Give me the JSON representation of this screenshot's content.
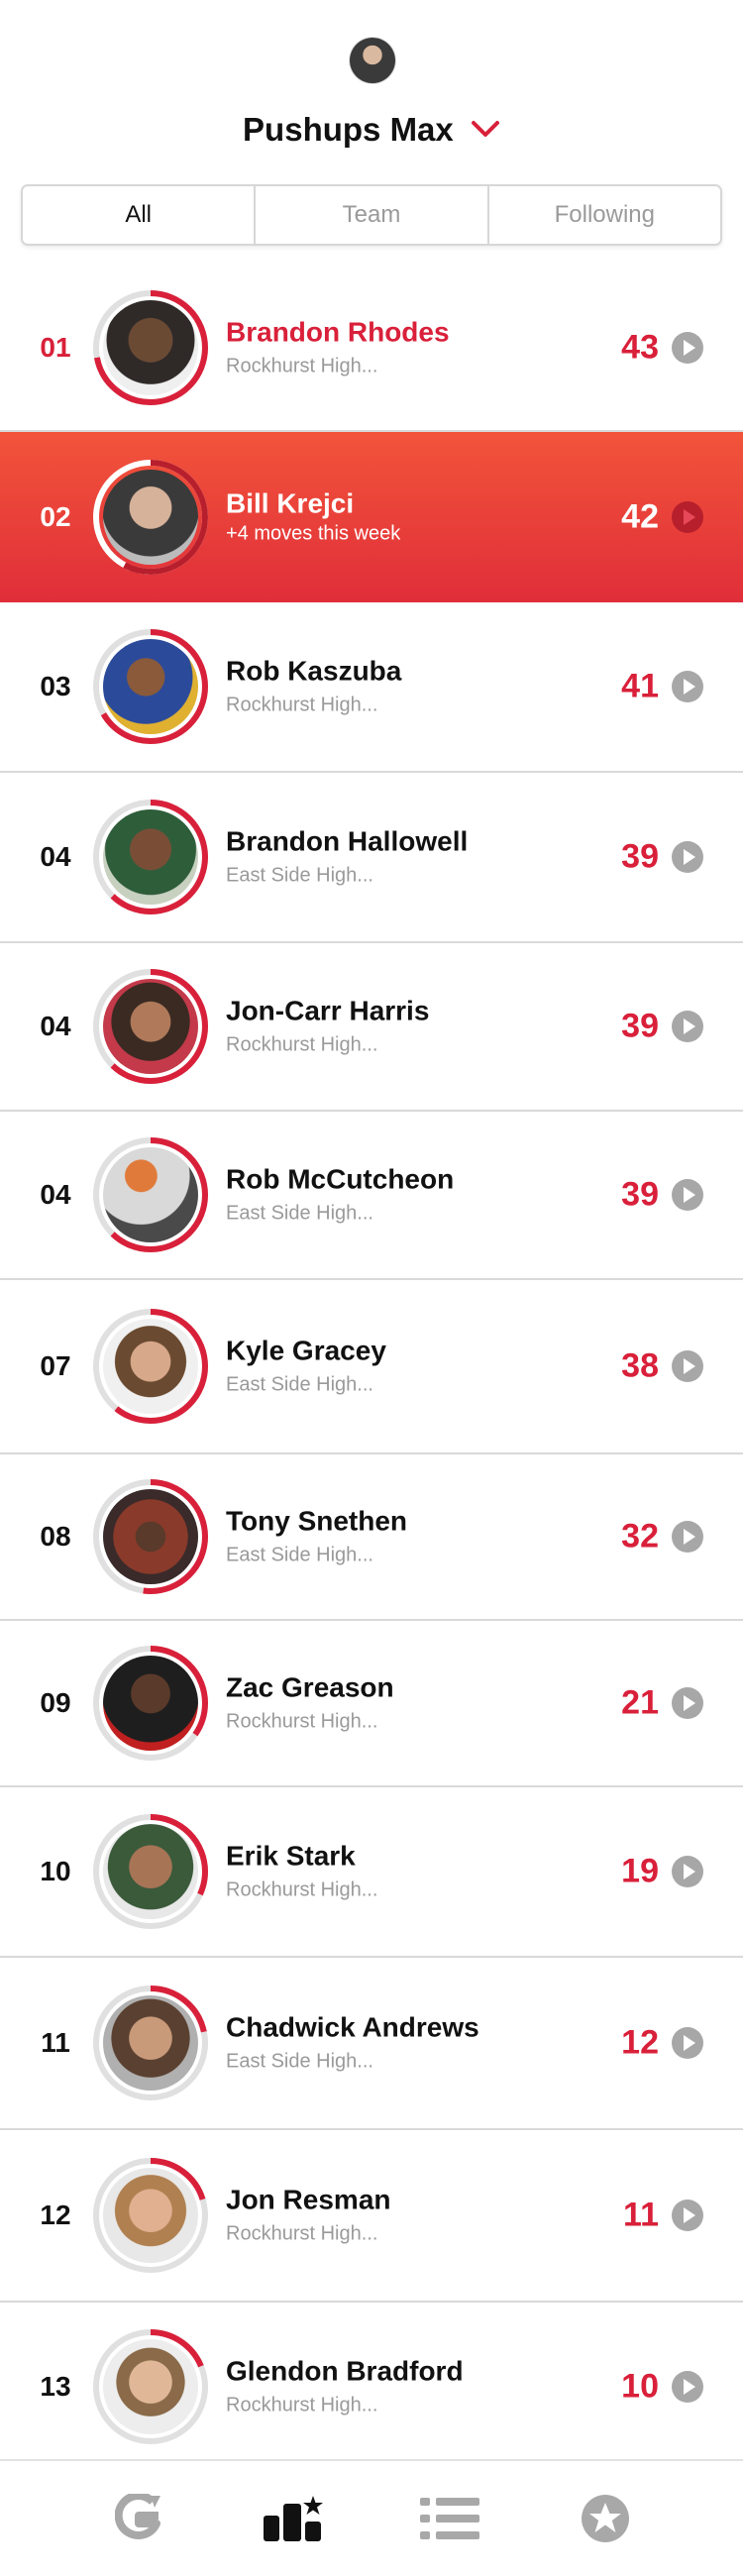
{
  "header": {
    "title": "Pushups Max",
    "tabs": [
      "All",
      "Team",
      "Following"
    ]
  },
  "rows": [
    {
      "rank": "01",
      "name": "Brandon Rhodes",
      "sub": "Rockhurst High...",
      "score": "43"
    },
    {
      "rank": "02",
      "name": "Bill Krejci",
      "sub": "+4 moves this week",
      "score": "42"
    },
    {
      "rank": "03",
      "name": "Rob Kaszuba",
      "sub": "Rockhurst High...",
      "score": "41"
    },
    {
      "rank": "04",
      "name": "Brandon Hallowell",
      "sub": "East Side High...",
      "score": "39"
    },
    {
      "rank": "04",
      "name": "Jon-Carr Harris",
      "sub": "Rockhurst High...",
      "score": "39"
    },
    {
      "rank": "04",
      "name": "Rob McCutcheon",
      "sub": "East Side High...",
      "score": "39"
    },
    {
      "rank": "07",
      "name": "Kyle Gracey",
      "sub": "East Side High...",
      "score": "38"
    },
    {
      "rank": "08",
      "name": "Tony Snethen",
      "sub": "East Side High...",
      "score": "32"
    },
    {
      "rank": "09",
      "name": "Zac Greason",
      "sub": "Rockhurst High...",
      "score": "21"
    },
    {
      "rank": "10",
      "name": "Erik Stark",
      "sub": "Rockhurst High...",
      "score": "19"
    },
    {
      "rank": "11",
      "name": "Chadwick Andrews",
      "sub": "East Side High...",
      "score": "12"
    },
    {
      "rank": "12",
      "name": "Jon Resman",
      "sub": "Rockhurst High...",
      "score": "11"
    },
    {
      "rank": "13",
      "name": "Glendon Bradford",
      "sub": "Rockhurst High...",
      "score": "10"
    }
  ],
  "bottom_nav": {
    "items": [
      "gatorade-g-icon",
      "leaderboard-icon",
      "list-icon",
      "star-icon"
    ],
    "active": "leaderboard-icon"
  },
  "colors": {
    "accent": "#d9203a",
    "highlight_start": "#f2543a",
    "highlight_end": "#e02e3a"
  }
}
